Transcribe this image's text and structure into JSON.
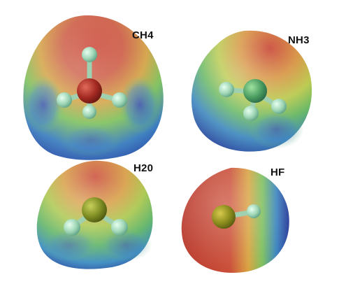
{
  "figure": {
    "molecules": [
      {
        "id": "ch4",
        "label": "CH4"
      },
      {
        "id": "nh3",
        "label": "NH3"
      },
      {
        "id": "h2o",
        "label": "H20"
      },
      {
        "id": "hf",
        "label": "HF"
      }
    ]
  }
}
